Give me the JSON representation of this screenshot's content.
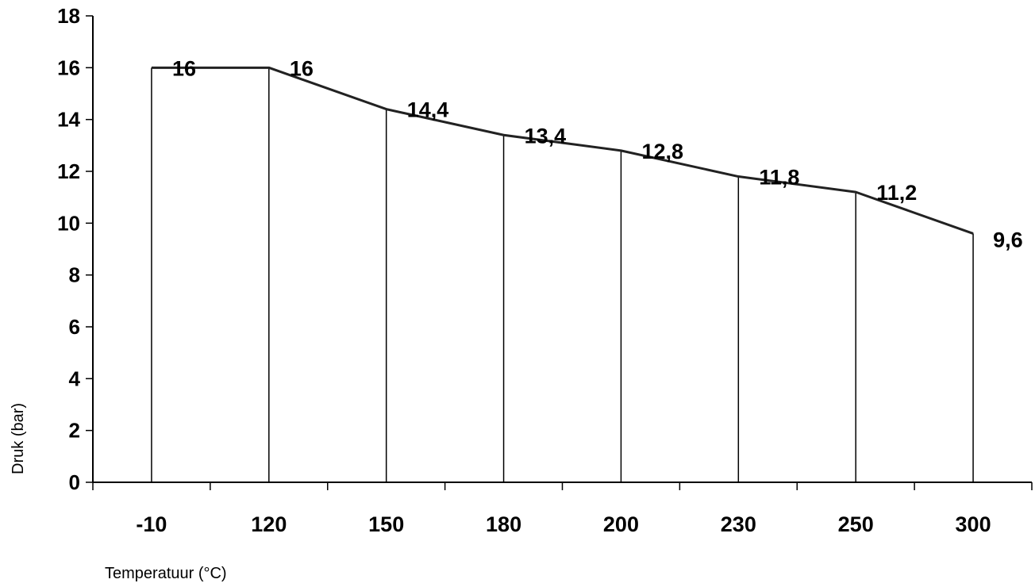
{
  "chart_data": {
    "type": "line",
    "categories": [
      "-10",
      "120",
      "150",
      "180",
      "200",
      "230",
      "250",
      "300"
    ],
    "series": [
      {
        "values": [
          16,
          16,
          14.4,
          13.4,
          12.8,
          11.8,
          11.2,
          9.6
        ]
      }
    ],
    "data_labels": [
      "16",
      "16",
      "14,4",
      "13,4",
      "12,8",
      "11,8",
      "11,2",
      "9,6"
    ],
    "y_ticks": [
      "0",
      "2",
      "4",
      "6",
      "8",
      "10",
      "12",
      "14",
      "16",
      "18"
    ],
    "xlabel": "Temperatuur (°C)",
    "ylabel": "Druk (bar)",
    "ylim": [
      0,
      18
    ],
    "grid": false,
    "drop_lines": true,
    "colors": {
      "line": "#222222",
      "axis": "#000000"
    }
  }
}
